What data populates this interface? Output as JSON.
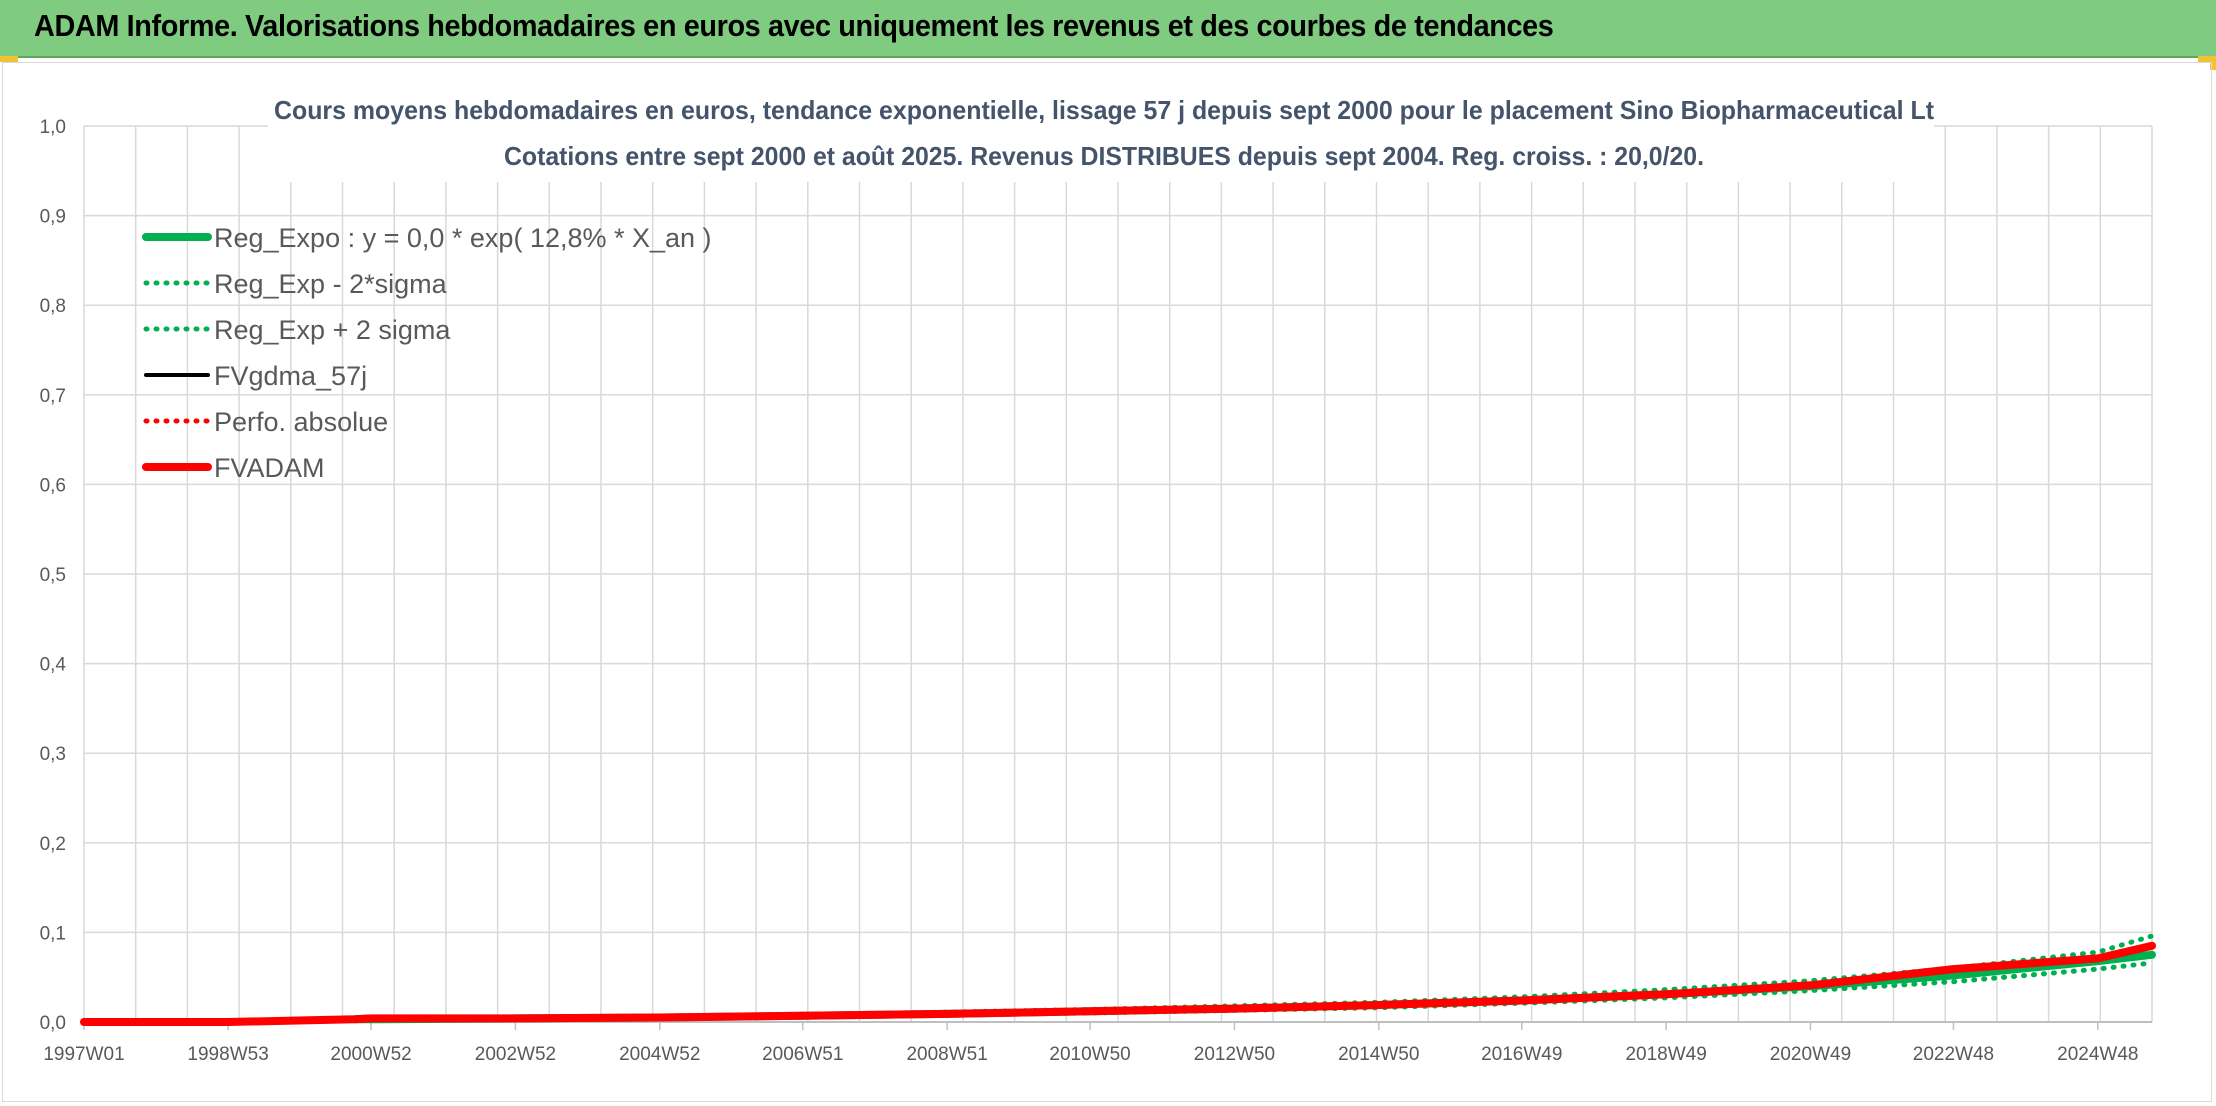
{
  "banner": {
    "title": "ADAM Informe. Valorisations hebdomadaires en euros avec uniquement les revenus et des courbes de tendances"
  },
  "colors": {
    "banner_bg": "#7fcb7f",
    "accent_corner": "#f1c232",
    "reg_green": "#00b050",
    "fvgdma_black": "#000000",
    "adam_red": "#ff0000",
    "title_color": "#44546a"
  },
  "chart_data": {
    "type": "line",
    "title_line1": "Cours moyens hebdomadaires en euros, tendance exponentielle, lissage 57 j depuis sept 2000 pour le placement Sino Biopharmaceutical Lt",
    "title_line2": "Cotations entre sept 2000 et août 2025. Revenus DISTRIBUES depuis sept 2004. Reg. croiss. : 20,0/20.",
    "xlabel": "",
    "ylabel": "",
    "ylim": [
      0,
      1.0
    ],
    "y_ticks": [
      "0,0",
      "0,1",
      "0,2",
      "0,3",
      "0,4",
      "0,5",
      "0,6",
      "0,7",
      "0,8",
      "0,9",
      "1,0"
    ],
    "x_ticks": [
      "1997W01",
      "1998W53",
      "2000W52",
      "2002W52",
      "2004W52",
      "2006W51",
      "2008W51",
      "2010W50",
      "2012W50",
      "2014W50",
      "2016W49",
      "2018W49",
      "2020W49",
      "2022W48",
      "2024W48"
    ],
    "x_range": [
      "1997W01",
      "2025W35"
    ],
    "grid": true,
    "legend_position": "top-left",
    "x": [
      "1997W01",
      "1998W53",
      "2000W40",
      "2000W52",
      "2002W52",
      "2004W52",
      "2006W51",
      "2008W51",
      "2010W50",
      "2012W50",
      "2014W50",
      "2016W49",
      "2018W49",
      "2020W49",
      "2022W48",
      "2024W48",
      "2025W35"
    ],
    "series": [
      {
        "name": "Reg_Expo : y = 0,0 * exp( 12,8% *  X_an )",
        "style": "solid-thick",
        "color": "#00b050",
        "values": [
          null,
          null,
          0.003,
          0.003,
          0.004,
          0.005,
          0.007,
          0.009,
          0.012,
          0.015,
          0.019,
          0.024,
          0.031,
          0.04,
          0.052,
          0.068,
          0.075
        ]
      },
      {
        "name": "Reg_Exp - 2*sigma",
        "style": "dotted",
        "color": "#00b050",
        "values": [
          null,
          null,
          0.002,
          0.002,
          0.003,
          0.004,
          0.006,
          0.008,
          0.01,
          0.013,
          0.016,
          0.021,
          0.027,
          0.035,
          0.045,
          0.059,
          0.066
        ]
      },
      {
        "name": "Reg_Exp + 2 sigma",
        "style": "dotted",
        "color": "#00b050",
        "values": [
          null,
          null,
          0.004,
          0.004,
          0.005,
          0.006,
          0.008,
          0.011,
          0.014,
          0.018,
          0.022,
          0.028,
          0.036,
          0.046,
          0.06,
          0.078,
          0.096
        ]
      },
      {
        "name": "FVgdma_57j",
        "style": "solid",
        "color": "#000000",
        "values": [
          0.0,
          0.0,
          0.003,
          0.004,
          0.004,
          0.005,
          0.007,
          0.009,
          0.012,
          0.015,
          0.019,
          0.024,
          0.031,
          0.04,
          0.058,
          0.07,
          0.083
        ]
      },
      {
        "name": "Perfo. absolue",
        "style": "dotted",
        "color": "#ff0000",
        "values": [
          0.0,
          0.0,
          0.003,
          0.004,
          0.004,
          0.005,
          0.007,
          0.009,
          0.012,
          0.015,
          0.019,
          0.024,
          0.031,
          0.041,
          0.059,
          0.071,
          0.085
        ]
      },
      {
        "name": "FVADAM",
        "style": "solid-thick",
        "color": "#ff0000",
        "values": [
          0.0,
          0.0,
          0.003,
          0.004,
          0.004,
          0.005,
          0.007,
          0.009,
          0.012,
          0.015,
          0.019,
          0.024,
          0.031,
          0.041,
          0.059,
          0.071,
          0.085
        ]
      }
    ]
  }
}
